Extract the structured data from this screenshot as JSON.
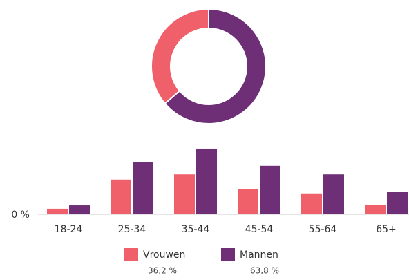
{
  "chart_data": [
    {
      "type": "donut",
      "values": [
        36.2,
        63.8
      ],
      "value_labels": [
        "36,2 %",
        "63,8 %"
      ],
      "colors": [
        "#f0606a",
        "#6e2f77"
      ]
    },
    {
      "type": "bar",
      "categories": [
        "18-24",
        "25-34",
        "35-44",
        "45-54",
        "55-64",
        "65+"
      ],
      "series": [
        {
          "name": "Vrouwen",
          "color": "#f0606a",
          "values": [
            1.5,
            9.3,
            10.7,
            6.7,
            5.6,
            2.6
          ]
        },
        {
          "name": "Mannen",
          "color": "#6e2f77",
          "values": [
            2.4,
            13.9,
            17.6,
            13.0,
            10.7,
            6.1
          ]
        }
      ],
      "ylim": [
        0,
        19
      ],
      "yticks": [
        {
          "value": 0,
          "label": "0 %"
        }
      ],
      "grid": false
    }
  ]
}
